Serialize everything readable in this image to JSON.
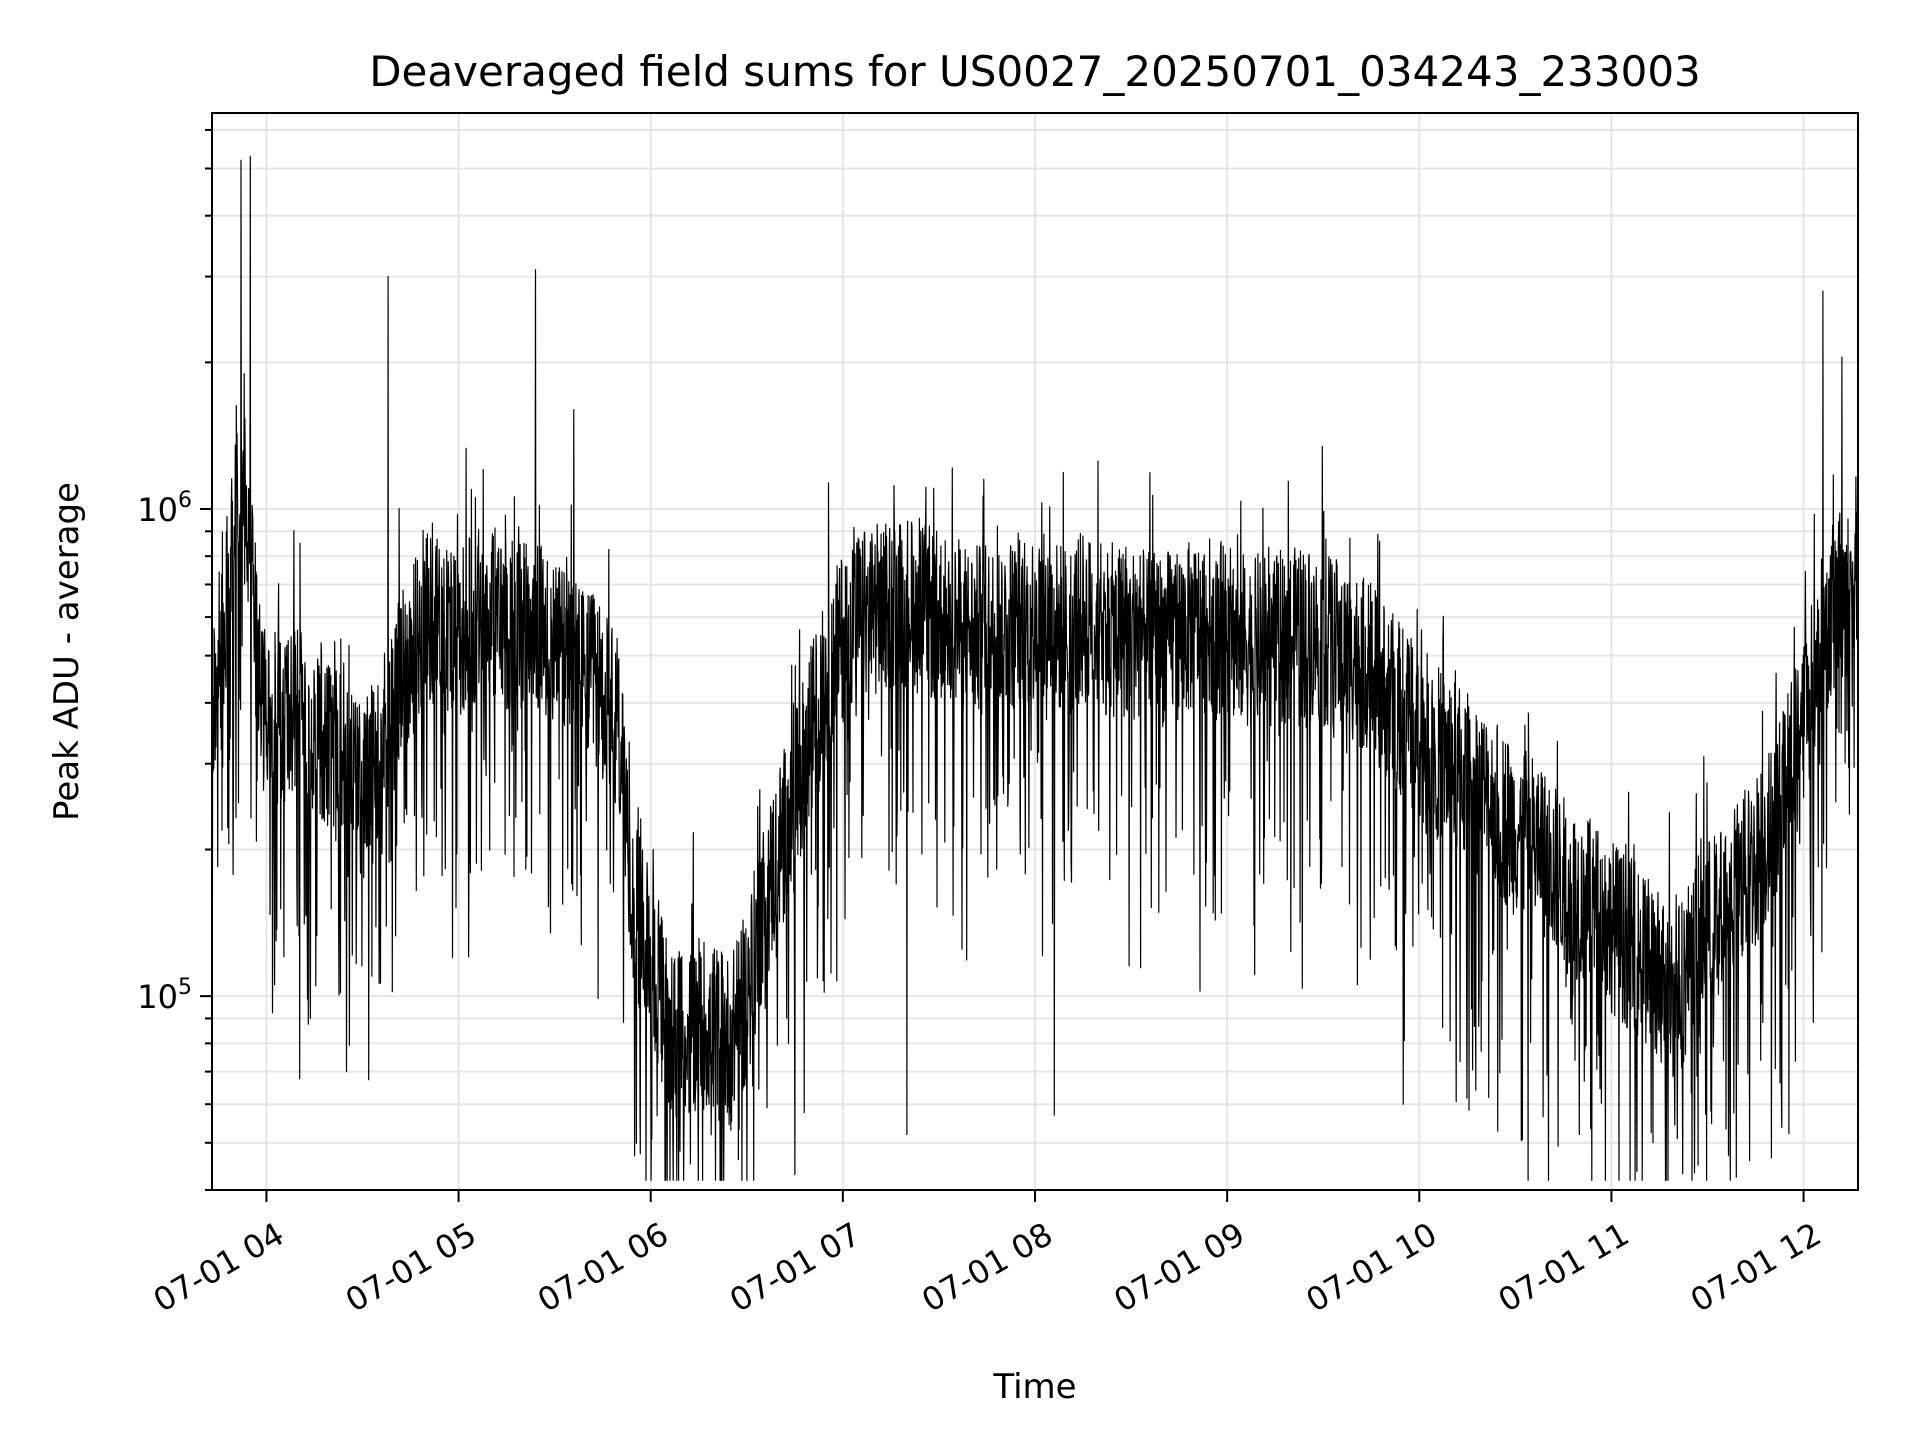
{
  "chart_data": {
    "type": "line",
    "title": "Deaveraged field sums for US0027_20250701_034243_233003",
    "xlabel": "Time",
    "ylabel": "Peak ADU - average",
    "xlim": [
      "2025-07-01 03:43",
      "2025-07-01 12:17"
    ],
    "ylim": [
      40000,
      6500000
    ],
    "yscale": "log",
    "grid": true,
    "legend": "none",
    "line_color": "#000000",
    "x_ticks": [
      "2025-07-01 04:00",
      "2025-07-01 05:00",
      "2025-07-01 06:00",
      "2025-07-01 07:00",
      "2025-07-01 08:00",
      "2025-07-01 09:00",
      "2025-07-01 10:00",
      "2025-07-01 11:00",
      "2025-07-01 12:00"
    ],
    "x_tick_labels": [
      "07-01 04",
      "07-01 05",
      "07-01 06",
      "07-01 07",
      "07-01 08",
      "07-01 09",
      "07-01 10",
      "07-01 11",
      "07-01 12"
    ],
    "y_ticks": [
      100000,
      1000000
    ],
    "y_tick_labels": [
      {
        "base": "10",
        "exp": "5"
      },
      {
        "base": "10",
        "exp": "6"
      }
    ],
    "series": [
      {
        "x": [
          "03:43",
          "03:48",
          "03:52",
          "03:54",
          "03:56",
          "03:58",
          "04:00",
          "04:05",
          "04:10",
          "04:15",
          "04:20",
          "04:25",
          "04:30",
          "04:35",
          "04:40",
          "04:45",
          "04:50",
          "04:55",
          "05:00",
          "05:05",
          "05:10",
          "05:15",
          "05:20",
          "05:25",
          "05:30",
          "05:35",
          "05:40",
          "05:45",
          "05:50",
          "05:52",
          "05:55",
          "06:00",
          "06:05",
          "06:10",
          "06:15",
          "06:20",
          "06:25",
          "06:30",
          "06:35",
          "06:40",
          "06:45",
          "06:50",
          "06:55",
          "07:00",
          "07:05",
          "07:10",
          "07:15",
          "07:20",
          "07:25",
          "07:30",
          "07:35",
          "07:40",
          "07:45",
          "07:50",
          "07:55",
          "08:00",
          "08:05",
          "08:10",
          "08:15",
          "08:20",
          "08:25",
          "08:30",
          "08:35",
          "08:40",
          "08:45",
          "08:50",
          "08:55",
          "09:00",
          "09:05",
          "09:10",
          "09:15",
          "09:20",
          "09:25",
          "09:30",
          "09:35",
          "09:40",
          "09:45",
          "09:50",
          "09:55",
          "10:00",
          "10:05",
          "10:10",
          "10:15",
          "10:20",
          "10:25",
          "10:30",
          "10:35",
          "10:40",
          "10:45",
          "10:50",
          "10:55",
          "11:00",
          "11:05",
          "11:10",
          "11:15",
          "11:20",
          "11:25",
          "11:30",
          "11:35",
          "11:40",
          "11:45",
          "11:50",
          "11:55",
          "12:00",
          "12:05",
          "12:10",
          "12:17"
        ],
        "y": [
          380000,
          700000,
          1100000,
          1000000,
          650000,
          420000,
          380000,
          360000,
          400000,
          350000,
          320000,
          300000,
          260000,
          320000,
          400000,
          500000,
          600000,
          580000,
          560000,
          600000,
          620000,
          580000,
          590000,
          560000,
          540000,
          500000,
          450000,
          420000,
          350000,
          250000,
          150000,
          120000,
          90000,
          80000,
          90000,
          85000,
          80000,
          100000,
          150000,
          200000,
          250000,
          350000,
          450000,
          550000,
          600000,
          620000,
          640000,
          650000,
          620000,
          600000,
          580000,
          560000,
          560000,
          580000,
          590000,
          600000,
          580000,
          560000,
          600000,
          580000,
          560000,
          560000,
          540000,
          540000,
          560000,
          570000,
          580000,
          560000,
          540000,
          520000,
          540000,
          550000,
          560000,
          540000,
          520000,
          500000,
          460000,
          420000,
          380000,
          350000,
          320000,
          300000,
          280000,
          260000,
          240000,
          220000,
          210000,
          190000,
          170000,
          160000,
          150000,
          140000,
          130000,
          120000,
          110000,
          100000,
          120000,
          140000,
          150000,
          170000,
          190000,
          220000,
          280000,
          380000,
          480000,
          650000,
          700000
        ],
        "spikes": [
          [
            "03:52",
            5200000
          ],
          [
            "03:55",
            5300000
          ],
          [
            "04:38",
            3000000
          ],
          [
            "05:24",
            3100000
          ],
          [
            "05:36",
            1600000
          ],
          [
            "07:44",
            1150000
          ],
          [
            "11:13",
            1040000
          ],
          [
            "12:06",
            2800000
          ],
          [
            "12:12",
            2050000
          ]
        ],
        "dips": [
          [
            "04:25",
            70000
          ],
          [
            "05:55",
            47000
          ],
          [
            "06:45",
            43000
          ],
          [
            "07:20",
            52000
          ],
          [
            "08:06",
            57000
          ],
          [
            "09:55",
            60000
          ],
          [
            "10:50",
            52000
          ],
          [
            "11:13",
            50000
          ],
          [
            "11:27",
            45000
          ]
        ]
      }
    ]
  }
}
